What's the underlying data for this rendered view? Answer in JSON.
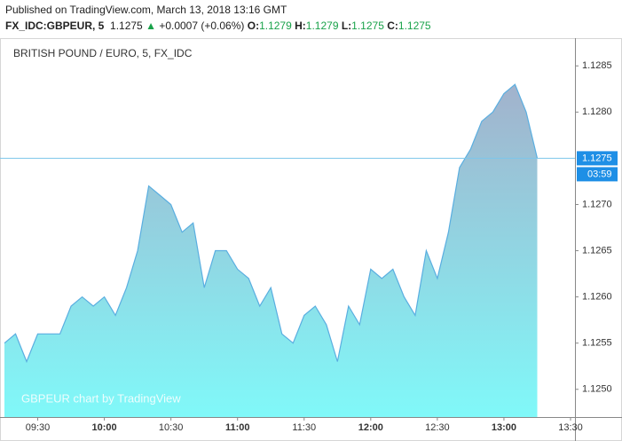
{
  "published": "Published on TradingView.com, March 13, 2018 13:16 GMT",
  "symbol": "FX_IDC:GBPEUR, 5",
  "price": "1.1275",
  "change": "+0.0007 (+0.06%)",
  "ohlc": [
    {
      "label": "O:",
      "value": "1.1279"
    },
    {
      "label": "H:",
      "value": "1.1279"
    },
    {
      "label": "L:",
      "value": "1.1275"
    },
    {
      "label": "C:",
      "value": "1.1275"
    }
  ],
  "chart_data": {
    "type": "area",
    "title": "BRITISH POUND / EURO, 5, FX_IDC",
    "watermark": "GBPEUR chart by TradingView",
    "color": "#5aaee0",
    "fill_gradient": [
      "#a2b2cc",
      "#80f9f9"
    ],
    "x": [
      "09:15",
      "09:20",
      "09:25",
      "09:30",
      "09:35",
      "09:40",
      "09:45",
      "09:50",
      "09:55",
      "10:00",
      "10:05",
      "10:10",
      "10:15",
      "10:20",
      "10:25",
      "10:30",
      "10:35",
      "10:40",
      "10:45",
      "10:50",
      "10:55",
      "11:00",
      "11:05",
      "11:10",
      "11:15",
      "11:20",
      "11:25",
      "11:30",
      "11:35",
      "11:40",
      "11:45",
      "11:50",
      "11:55",
      "12:00",
      "12:05",
      "12:10",
      "12:15",
      "12:20",
      "12:25",
      "12:30",
      "12:35",
      "12:40",
      "12:45",
      "12:50",
      "12:55",
      "13:00",
      "13:05",
      "13:10",
      "13:15"
    ],
    "values": [
      1.1255,
      1.1256,
      1.1253,
      1.1256,
      1.1256,
      1.1256,
      1.1259,
      1.126,
      1.1259,
      1.126,
      1.1258,
      1.1261,
      1.1265,
      1.1272,
      1.1271,
      1.127,
      1.1267,
      1.1268,
      1.1261,
      1.1265,
      1.1265,
      1.1263,
      1.1262,
      1.1259,
      1.1261,
      1.1256,
      1.1255,
      1.1258,
      1.1259,
      1.1257,
      1.1253,
      1.1259,
      1.1257,
      1.1263,
      1.1262,
      1.1263,
      1.126,
      1.1258,
      1.1265,
      1.1262,
      1.1267,
      1.1274,
      1.1276,
      1.1279,
      1.128,
      1.1282,
      1.1283,
      1.128,
      1.1275
    ],
    "xlim": [
      "09:13",
      "13:32"
    ],
    "xticks": [
      "09:30",
      "10:00",
      "10:30",
      "11:00",
      "11:30",
      "12:00",
      "12:30",
      "13:00",
      "13:30"
    ],
    "ylim": [
      1.1247,
      1.1288
    ],
    "yticks": [
      {
        "value": 1.125,
        "label": "1.1250"
      },
      {
        "value": 1.1255,
        "label": "1.1255"
      },
      {
        "value": 1.126,
        "label": "1.1260"
      },
      {
        "value": 1.1265,
        "label": "1.1265"
      },
      {
        "value": 1.127,
        "label": "1.1270"
      },
      {
        "value": 1.128,
        "label": "1.1280"
      },
      {
        "value": 1.1285,
        "label": "1.1285"
      }
    ],
    "last_price": {
      "value": 1.1275,
      "label": "1.1275"
    },
    "countdown": "03:59",
    "last_price_color": "#1e8fe6"
  }
}
